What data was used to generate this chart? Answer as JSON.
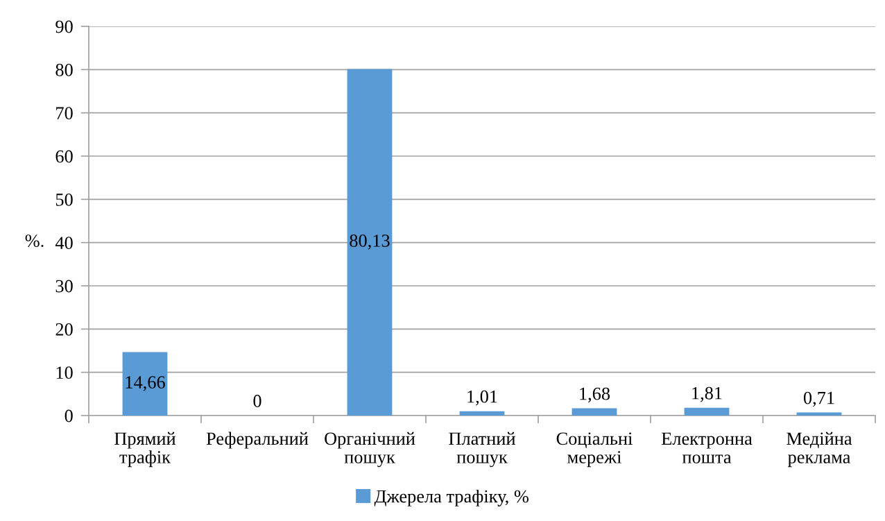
{
  "chart_data": {
    "type": "bar",
    "categories": [
      "Прямий\nтрафік",
      "Реферальний",
      "Органічний\nпошук",
      "Платний\nпошук",
      "Соціальні\nмережі",
      "Електронна\nпошта",
      "Медійна\nреклама"
    ],
    "series": [
      {
        "name": "Джерела трафіку, %",
        "color": "#5b9bd5",
        "values": [
          14.66,
          0,
          80.13,
          1.01,
          1.68,
          1.81,
          0.71
        ],
        "value_labels": [
          "14,66",
          "0",
          "80,13",
          "1,01",
          "1,68",
          "1,81",
          "0,71"
        ]
      }
    ],
    "ylabel": "%.",
    "ylim": [
      0,
      90
    ],
    "yticks": [
      0,
      10,
      20,
      30,
      40,
      50,
      60,
      70,
      80,
      90
    ],
    "grid": "y",
    "legend": "bottom"
  }
}
